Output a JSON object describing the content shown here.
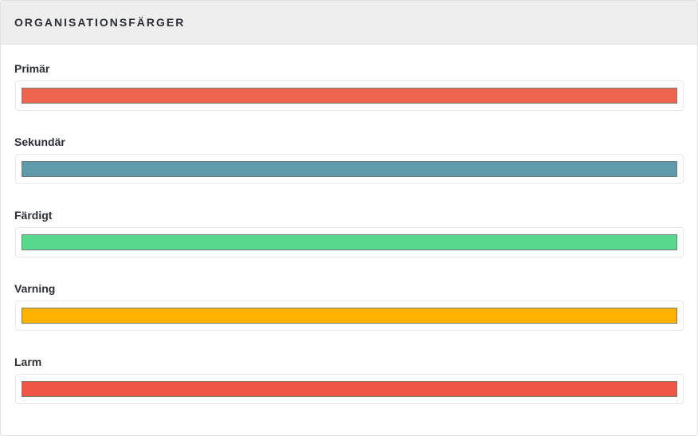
{
  "panel": {
    "title": "ORGANISATIONSFÄRGER"
  },
  "colors": [
    {
      "label": "Primär",
      "value": "#ec644b"
    },
    {
      "label": "Sekundär",
      "value": "#5e9baa"
    },
    {
      "label": "Färdigt",
      "value": "#56d98a"
    },
    {
      "label": "Varning",
      "value": "#ffb300"
    },
    {
      "label": "Larm",
      "value": "#ee5542"
    }
  ]
}
